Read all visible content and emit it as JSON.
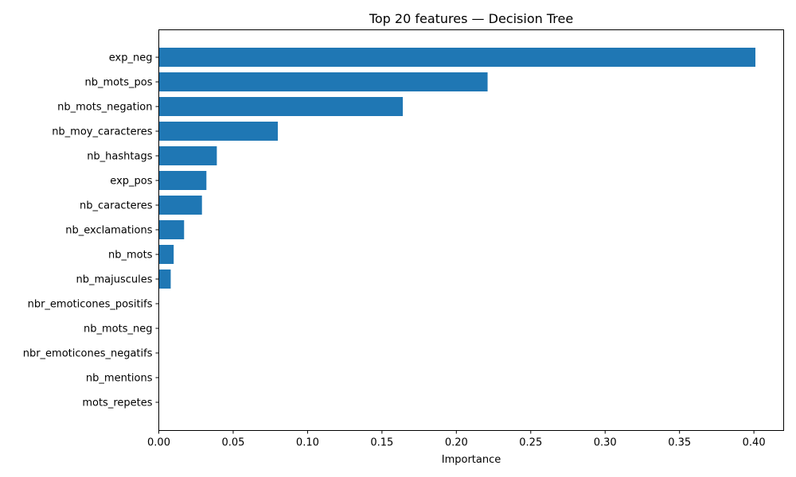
{
  "chart_data": {
    "type": "bar",
    "orientation": "horizontal",
    "title": "Top 20 features — Decision Tree",
    "xlabel": "Importance",
    "ylabel": "",
    "xlim": [
      0,
      0.42
    ],
    "x_ticks": [
      "0.00",
      "0.05",
      "0.10",
      "0.15",
      "0.20",
      "0.25",
      "0.30",
      "0.35",
      "0.40"
    ],
    "categories": [
      "exp_neg",
      "nb_mots_pos",
      "nb_mots_negation",
      "nb_moy_caracteres",
      "nb_hashtags",
      "exp_pos",
      "nb_caracteres",
      "nb_exclamations",
      "nb_mots",
      "nb_majuscules",
      "nbr_emoticones_positifs",
      "nb_mots_neg",
      "nbr_emoticones_negatifs",
      "nb_mentions",
      "mots_repetes"
    ],
    "values": [
      0.401,
      0.221,
      0.164,
      0.08,
      0.039,
      0.032,
      0.029,
      0.017,
      0.01,
      0.008,
      0,
      0,
      0,
      0,
      0
    ],
    "bar_color": "#1f77b4",
    "grid": false,
    "legend": "none"
  }
}
